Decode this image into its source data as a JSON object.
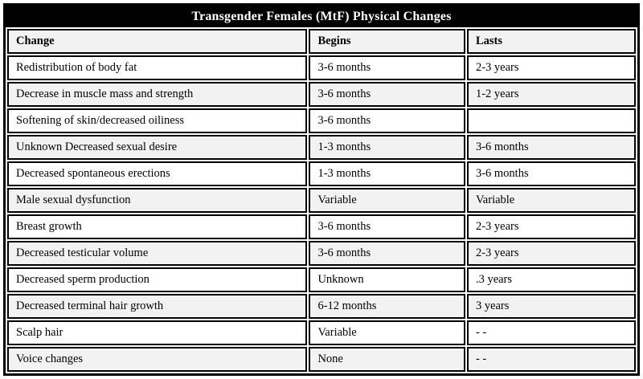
{
  "title": "Transgender Females (MtF) Physical Changes",
  "colors": {
    "title_bg": "#000000",
    "title_text": "#ffffff",
    "border": "#000000",
    "row_alt_bg": "#f2f2f2",
    "row_bg": "#ffffff"
  },
  "table": {
    "columns": [
      "Change",
      "Begins",
      "Lasts"
    ],
    "rows": [
      {
        "change": "Redistribution of body fat",
        "begins": "3-6 months",
        "lasts": "2-3 years"
      },
      {
        "change": "Decrease in muscle mass and strength",
        "begins": "3-6 months",
        "lasts": "1-2 years"
      },
      {
        "change": "Softening of skin/decreased oiliness",
        "begins": "3-6 months",
        "lasts": ""
      },
      {
        "change": "Unknown Decreased sexual desire",
        "begins": "1-3 months",
        "lasts": "3-6 months"
      },
      {
        "change": "Decreased spontaneous erections",
        "begins": "1-3 months",
        "lasts": "3-6 months"
      },
      {
        "change": "Male sexual dysfunction",
        "begins": "Variable",
        "lasts": "Variable"
      },
      {
        "change": "Breast growth",
        "begins": "3-6 months",
        "lasts": "2-3 years"
      },
      {
        "change": "Decreased testicular volume",
        "begins": "3-6 months",
        "lasts": "2-3 years"
      },
      {
        "change": "Decreased sperm production",
        "begins": "Unknown",
        "lasts": ".3 years"
      },
      {
        "change": "Decreased terminal hair growth",
        "begins": "6-12 months",
        "lasts": "3 years"
      },
      {
        "change": "Scalp hair",
        "begins": "Variable",
        "lasts": "- -"
      },
      {
        "change": "Voice changes",
        "begins": "None",
        "lasts": "- -"
      }
    ]
  }
}
